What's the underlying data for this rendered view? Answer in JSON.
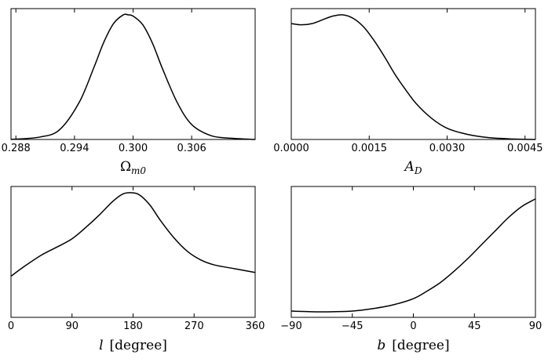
{
  "chart_data": [
    {
      "type": "line",
      "xlabel": "Ωm0",
      "xlabel_parts": {
        "main": "Ω",
        "sub": "m0",
        "sub_italic": true
      },
      "xlim": [
        0.2875,
        0.3125
      ],
      "xticks": [
        0.288,
        0.294,
        0.3,
        0.306
      ],
      "xtick_labels": [
        "0.288",
        "0.294",
        "0.300",
        "0.306"
      ],
      "ylim": [
        0,
        1.05
      ],
      "grid": false,
      "series": [
        {
          "x": [
            0.2875,
            0.2905,
            0.2925,
            0.2945,
            0.296,
            0.297,
            0.298,
            0.299,
            0.2995,
            0.3,
            0.301,
            0.302,
            0.303,
            0.3045,
            0.306,
            0.308,
            0.31,
            0.3125
          ],
          "y": [
            0.0,
            0.02,
            0.08,
            0.3,
            0.58,
            0.78,
            0.93,
            1.0,
            1.0,
            0.99,
            0.92,
            0.77,
            0.57,
            0.3,
            0.12,
            0.03,
            0.01,
            0.0
          ]
        }
      ]
    },
    {
      "type": "line",
      "xlabel": "AD",
      "xlabel_parts": {
        "main": "A",
        "sub": "D",
        "sub_italic": true
      },
      "xlim": [
        0.0,
        0.0047
      ],
      "xticks": [
        0.0,
        0.0015,
        0.003,
        0.0045
      ],
      "xtick_labels": [
        "0.0000",
        "0.0015",
        "0.0030",
        "0.0045"
      ],
      "ylim": [
        0,
        1.05
      ],
      "grid": false,
      "series": [
        {
          "x": [
            0.0,
            0.0002,
            0.0004,
            0.0006,
            0.0008,
            0.001,
            0.0012,
            0.0014,
            0.0016,
            0.0018,
            0.002,
            0.0022,
            0.0024,
            0.0027,
            0.003,
            0.0034,
            0.0038,
            0.0042,
            0.0047
          ],
          "y": [
            0.93,
            0.92,
            0.93,
            0.96,
            0.99,
            1.0,
            0.97,
            0.9,
            0.79,
            0.66,
            0.52,
            0.4,
            0.29,
            0.17,
            0.09,
            0.04,
            0.015,
            0.005,
            0.0
          ]
        }
      ]
    },
    {
      "type": "line",
      "xlabel": "l [degree]",
      "xlabel_parts": {
        "main": "l",
        "unit": "[degree]"
      },
      "xlim": [
        0,
        360
      ],
      "xticks": [
        0,
        90,
        180,
        270,
        360
      ],
      "xtick_labels": [
        "0",
        "90",
        "180",
        "270",
        "360"
      ],
      "ylim": [
        0,
        1.05
      ],
      "grid": false,
      "series": [
        {
          "x": [
            0,
            20,
            45,
            70,
            90,
            110,
            130,
            150,
            165,
            178,
            190,
            205,
            220,
            240,
            260,
            280,
            300,
            330,
            360
          ],
          "y": [
            0.33,
            0.41,
            0.5,
            0.57,
            0.63,
            0.72,
            0.82,
            0.93,
            0.99,
            1.0,
            0.98,
            0.9,
            0.78,
            0.64,
            0.53,
            0.46,
            0.42,
            0.39,
            0.36
          ]
        }
      ]
    },
    {
      "type": "line",
      "xlabel": "b [degree]",
      "xlabel_parts": {
        "main": "b",
        "unit": "[degree]"
      },
      "xlim": [
        -90,
        90
      ],
      "xticks": [
        -90,
        -45,
        0,
        45,
        90
      ],
      "xtick_labels": [
        "−90",
        "−45",
        "0",
        "45",
        "90"
      ],
      "ylim": [
        0,
        1.05
      ],
      "grid": false,
      "series": [
        {
          "x": [
            -90,
            -75,
            -60,
            -45,
            -30,
            -15,
            0,
            10,
            20,
            30,
            40,
            50,
            60,
            70,
            80,
            90
          ],
          "y": [
            0.05,
            0.045,
            0.045,
            0.05,
            0.07,
            0.1,
            0.15,
            0.21,
            0.28,
            0.37,
            0.47,
            0.58,
            0.69,
            0.8,
            0.89,
            0.95
          ]
        }
      ]
    }
  ]
}
